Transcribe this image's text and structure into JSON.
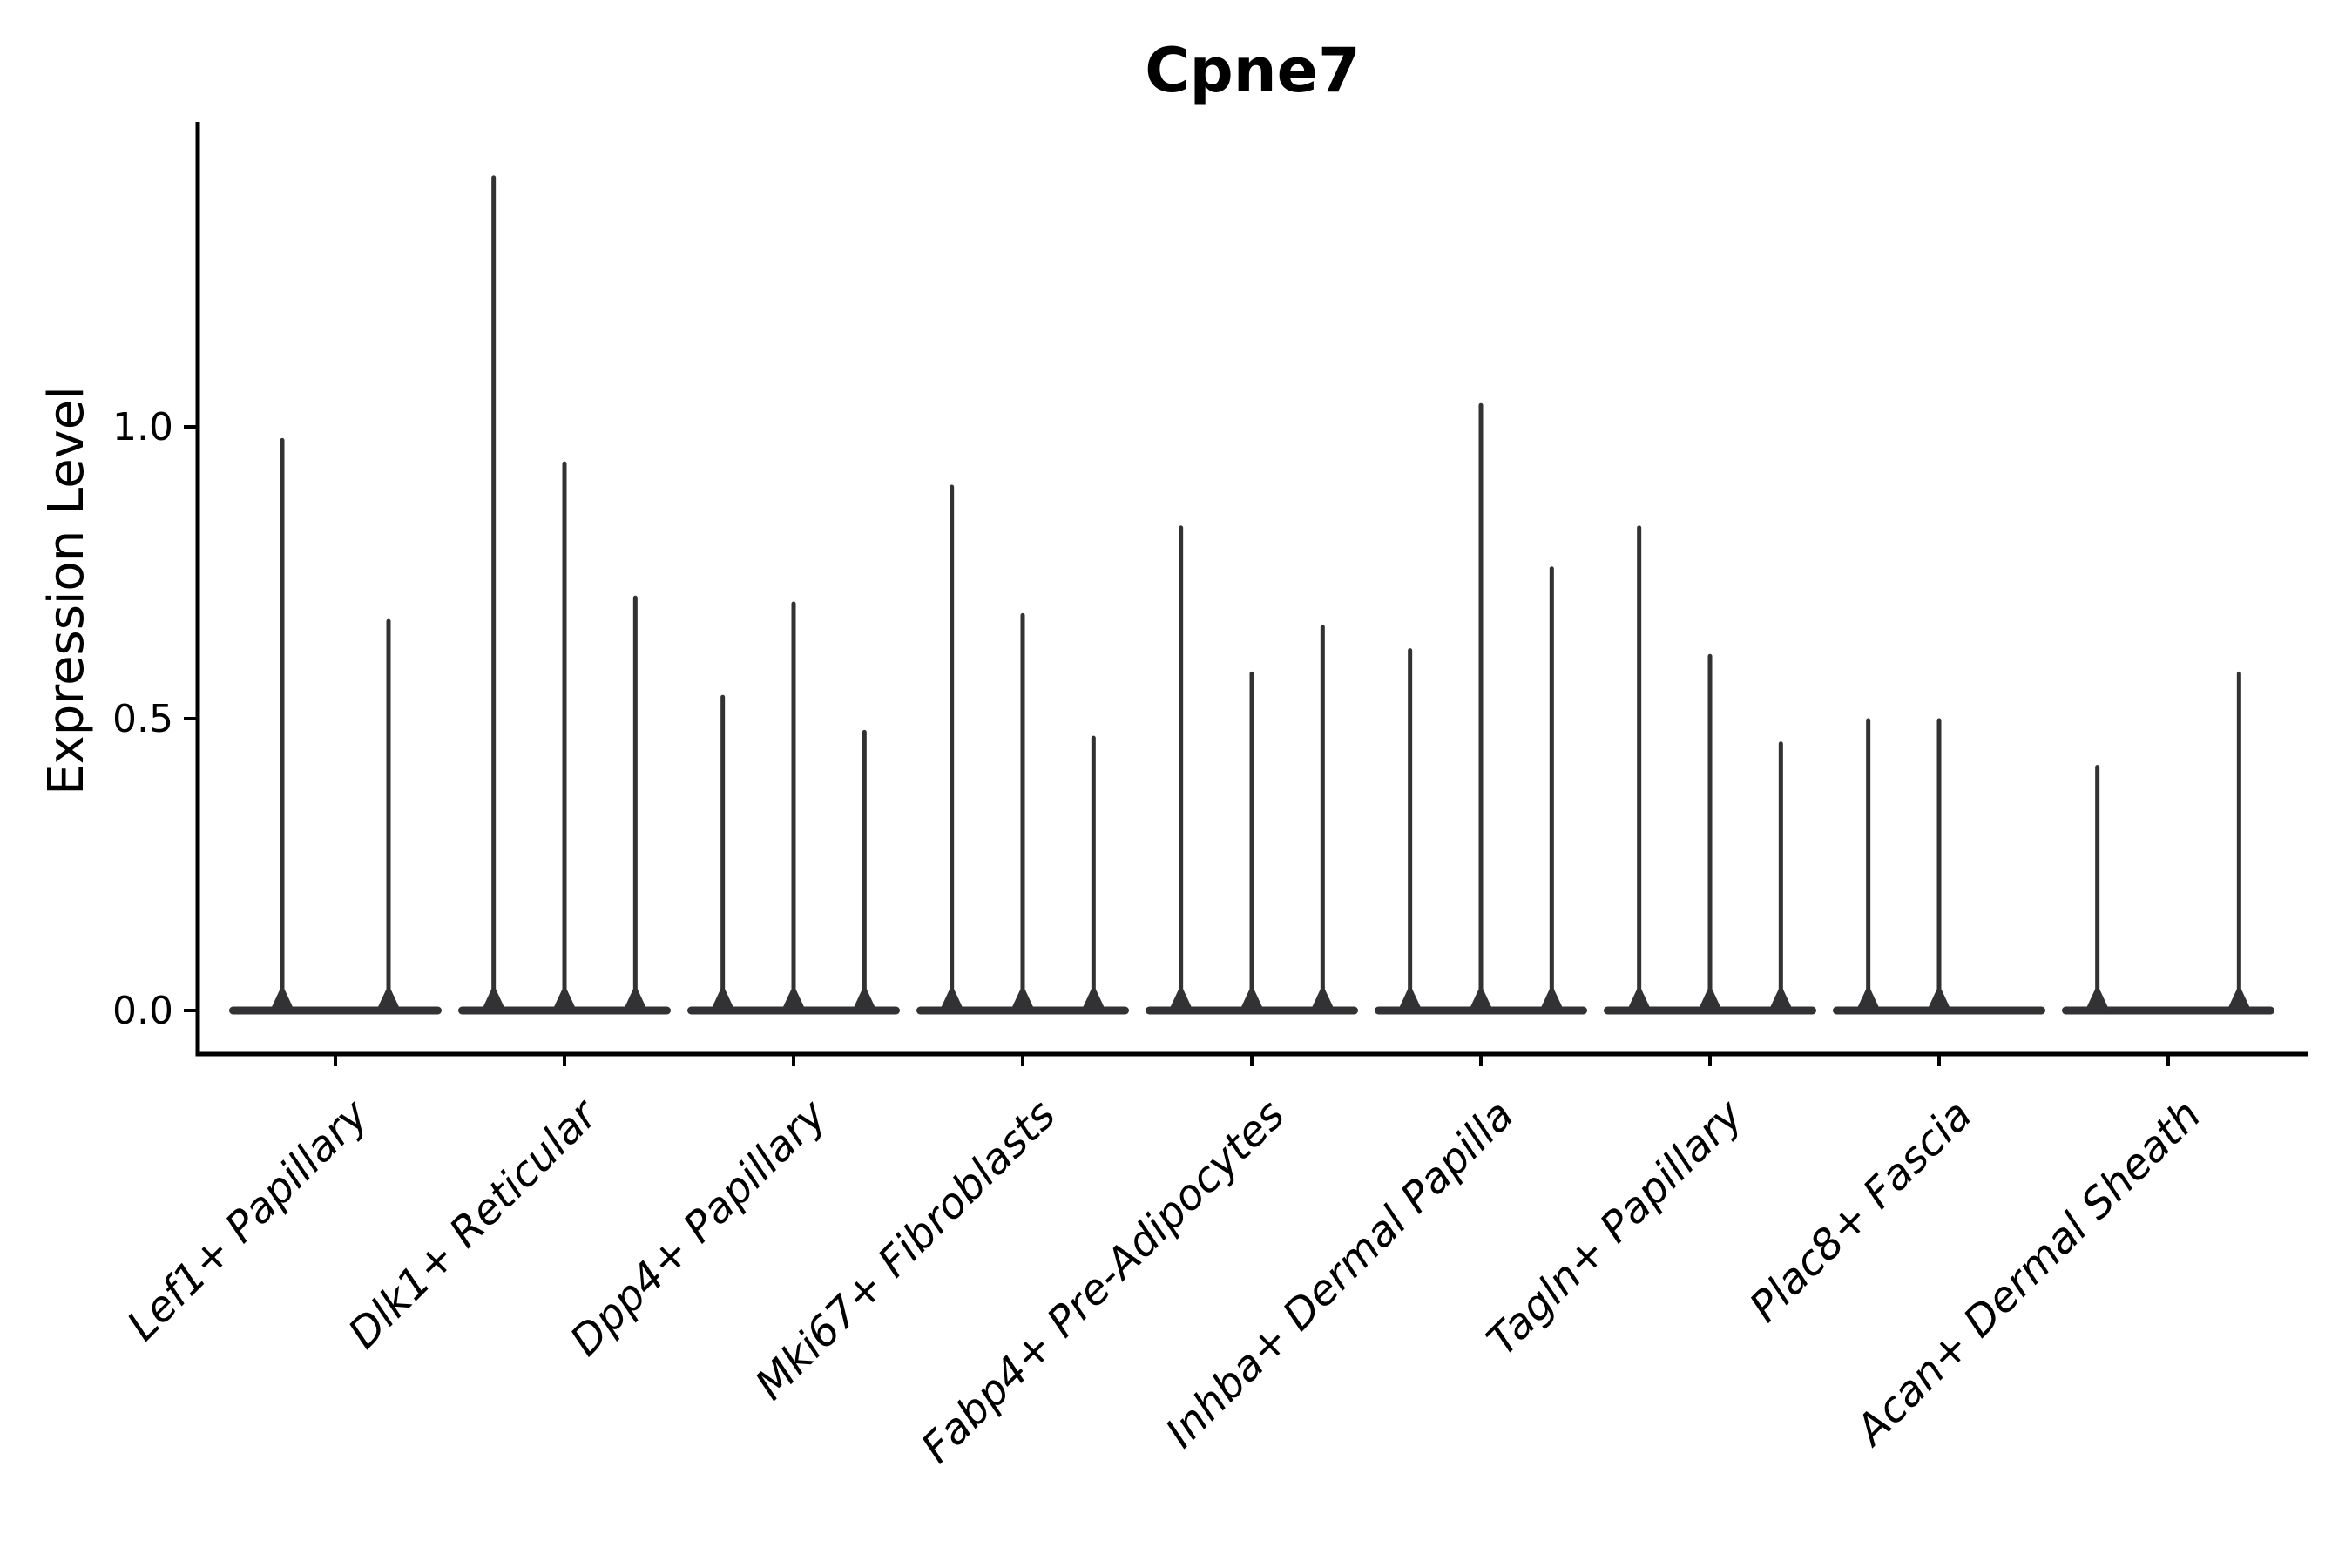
{
  "title": "Cpne7",
  "axes": {
    "ylabel": "Expression Level",
    "yticks": [
      {
        "value": 0.0,
        "label": "0.0"
      },
      {
        "value": 0.5,
        "label": "0.5"
      },
      {
        "value": 1.0,
        "label": "1.0"
      }
    ]
  },
  "chart_data": {
    "type": "violin",
    "title": "Cpne7",
    "xlabel": "",
    "ylabel": "Expression Level",
    "ylim": [
      -0.08,
      1.52
    ],
    "ytick_values": [
      0.0,
      0.5,
      1.0
    ],
    "ytick_labels": [
      "0.0",
      "0.5",
      "1.0"
    ],
    "grid": false,
    "legend": null,
    "description": "Violin plot of Cpne7 expression per cell-type cluster; each cluster contains 2-3 violins whose bodies are flattened at expression 0 with a thin density spike rising to the maximum expression value. A peak of 0 means a flat violin with no spike.",
    "categories": [
      "Lef1+ Papillary",
      "Dlk1+ Reticular",
      "Dpp4+ Papillary",
      "Mki67+ Fibroblasts",
      "Fabp4+ Pre-Adipocytes",
      "Inhba+ Dermal Papilla",
      "Tagln+ Papillary",
      "Plac8+ Fascia",
      "Acan+ Dermal Sheath"
    ],
    "groups": [
      {
        "category": "Lef1+ Papillary",
        "violin_peaks": [
          0.98,
          0.67
        ]
      },
      {
        "category": "Dlk1+ Reticular",
        "violin_peaks": [
          1.43,
          0.94,
          0.71
        ]
      },
      {
        "category": "Dpp4+ Papillary",
        "violin_peaks": [
          0.54,
          0.7,
          0.48
        ]
      },
      {
        "category": "Mki67+ Fibroblasts",
        "violin_peaks": [
          0.9,
          0.68,
          0.47
        ]
      },
      {
        "category": "Fabp4+ Pre-Adipocytes",
        "violin_peaks": [
          0.83,
          0.58,
          0.66
        ]
      },
      {
        "category": "Inhba+ Dermal Papilla",
        "violin_peaks": [
          0.62,
          1.04,
          0.76
        ]
      },
      {
        "category": "Tagln+ Papillary",
        "violin_peaks": [
          0.83,
          0.61,
          0.46
        ]
      },
      {
        "category": "Plac8+ Fascia",
        "violin_peaks": [
          0.5,
          0.5,
          0.0
        ]
      },
      {
        "category": "Acan+ Dermal Sheath",
        "violin_peaks": [
          0.42,
          0.0,
          0.58
        ]
      }
    ],
    "colors": {
      "violin": "#323234",
      "axis": "#000000",
      "text": "#000000",
      "background": "#ffffff"
    }
  }
}
